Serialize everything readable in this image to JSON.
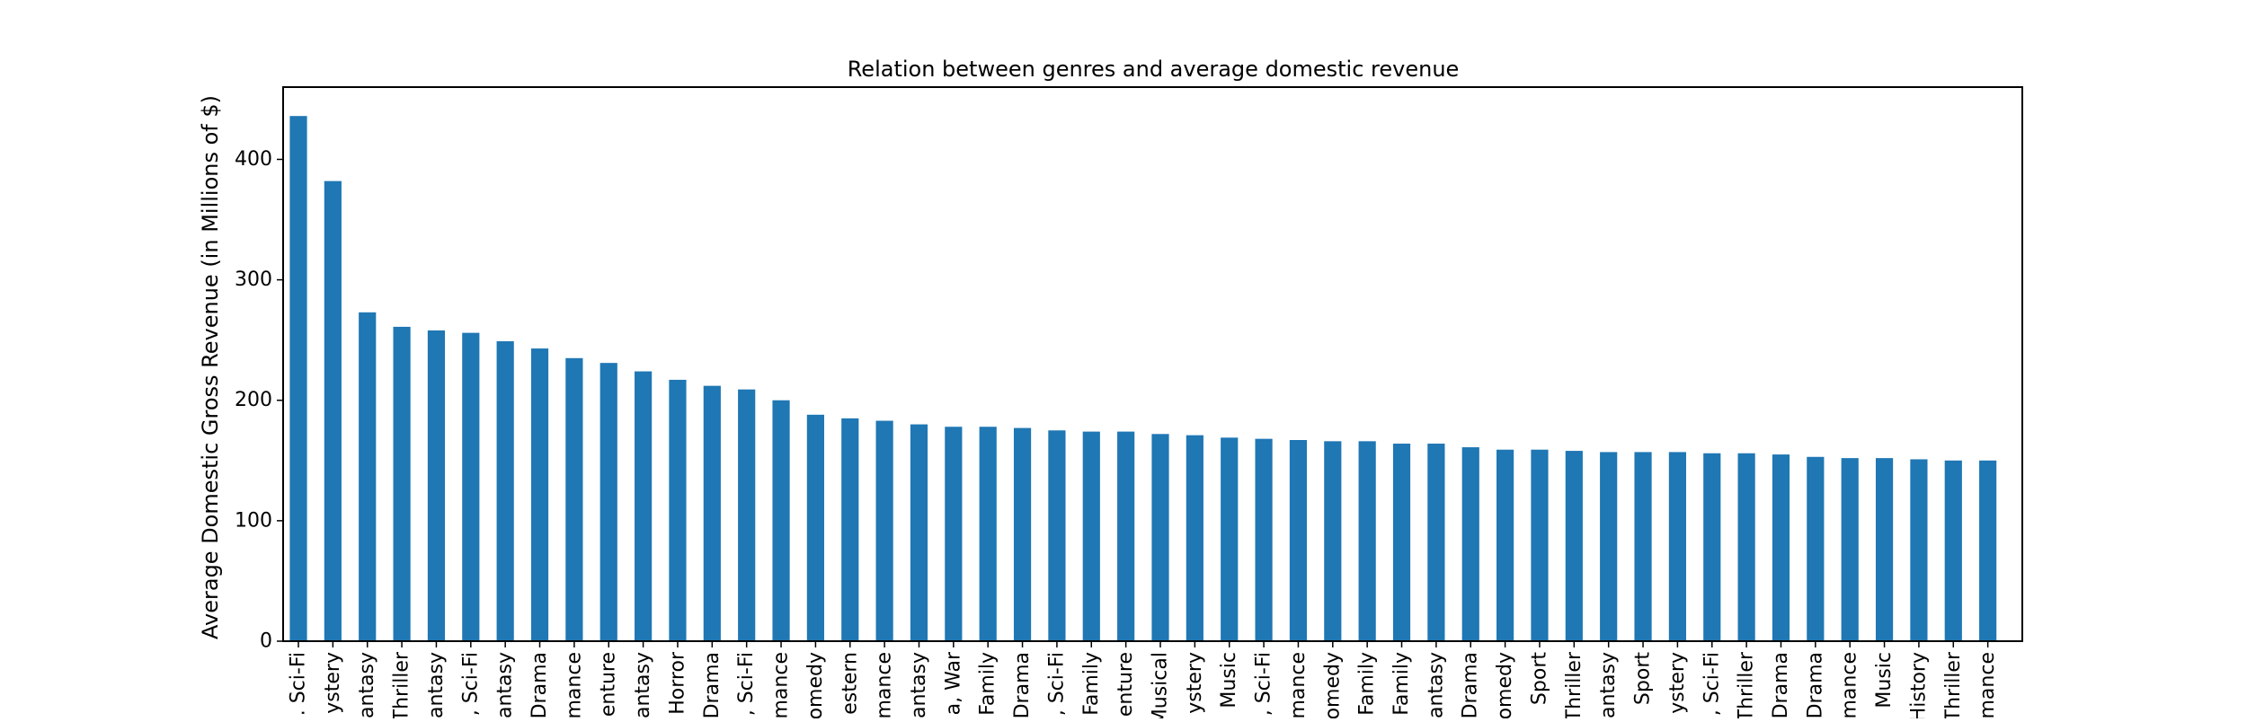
{
  "chart_data": {
    "type": "bar",
    "title": "Relation between genres and average domestic revenue",
    "xlabel": "",
    "ylabel": "Average Domestic Gross Revenue (in Millions of $)",
    "ylim": [
      0,
      460
    ],
    "yticks": [
      0,
      100,
      200,
      300,
      400
    ],
    "grid": false,
    "legend": "none",
    "bar_color": "#1f77b4",
    "categories": [
      ". Sci-Fi",
      "ystery",
      "antasy",
      "Thriller",
      "antasy",
      ", Sci-Fi",
      "antasy",
      "Drama",
      "mance",
      "enture",
      "antasy",
      "Horror",
      "Drama",
      ", Sci-Fi",
      "mance",
      "omedy",
      "estern",
      "mance",
      "antasy",
      "a, War",
      "Family",
      "Drama",
      ", Sci-Fi",
      "Family",
      "enture",
      "Musical",
      "ystery",
      "Music",
      ", Sci-Fi",
      "mance",
      "omedy",
      "Family",
      "Family",
      "antasy",
      "Drama",
      "omedy",
      "Sport",
      "Thriller",
      "antasy",
      "Sport",
      "ystery",
      ", Sci-Fi",
      "Thriller",
      "Drama",
      "Drama",
      "mance",
      "Music",
      "History",
      "Thriller",
      "mance"
    ],
    "values": [
      436,
      382,
      273,
      261,
      258,
      256,
      249,
      243,
      235,
      231,
      224,
      217,
      212,
      209,
      200,
      188,
      185,
      183,
      180,
      178,
      178,
      177,
      175,
      174,
      174,
      172,
      171,
      169,
      168,
      167,
      166,
      166,
      164,
      164,
      161,
      159,
      159,
      158,
      157,
      157,
      157,
      156,
      156,
      155,
      153,
      152,
      152,
      151,
      150,
      150
    ]
  }
}
